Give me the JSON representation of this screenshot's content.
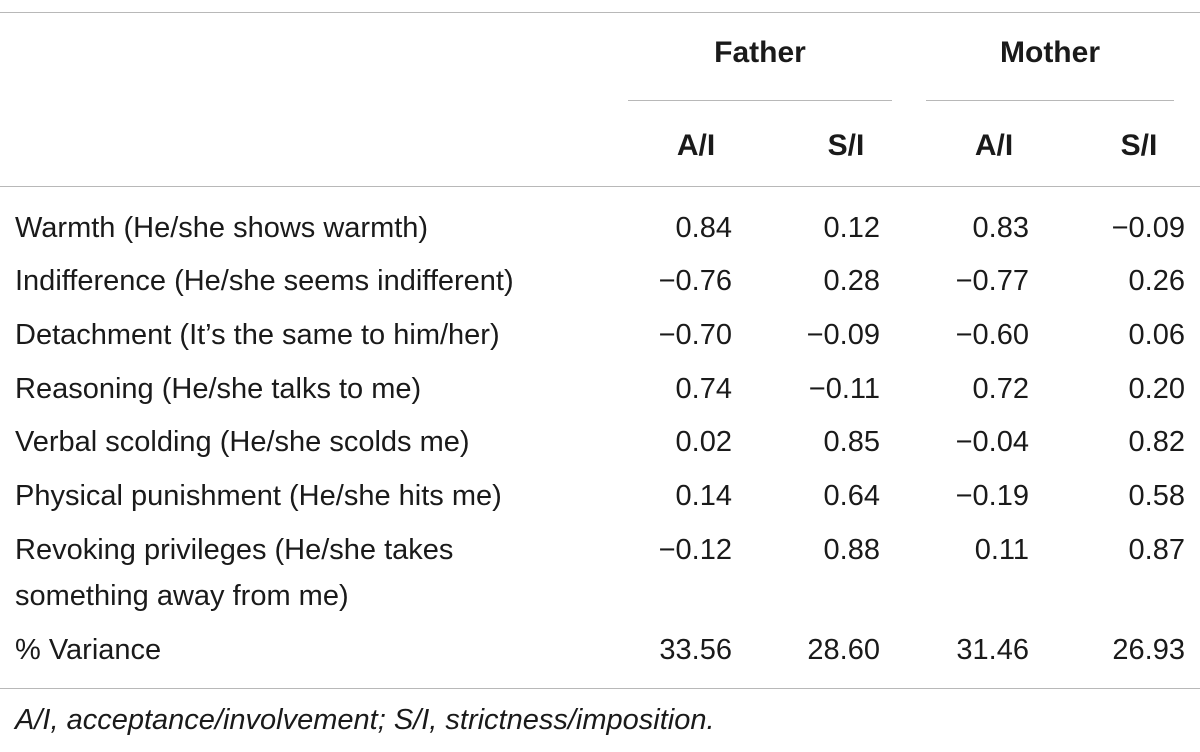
{
  "header": {
    "group1": "Father",
    "group2": "Mother",
    "cols": [
      "A/I",
      "S/I",
      "A/I",
      "S/I"
    ]
  },
  "rows": [
    {
      "label": "Warmth (He/she shows warmth)",
      "values": [
        "0.84",
        "0.12",
        "0.83",
        "−0.09"
      ]
    },
    {
      "label": "Indifference (He/she seems indifferent)",
      "values": [
        "−0.76",
        "0.28",
        "−0.77",
        "0.26"
      ]
    },
    {
      "label": "Detachment (It’s the same to him/her)",
      "values": [
        "−0.70",
        "−0.09",
        "−0.60",
        "0.06"
      ]
    },
    {
      "label": "Reasoning (He/she talks to me)",
      "values": [
        "0.74",
        "−0.11",
        "0.72",
        "0.20"
      ]
    },
    {
      "label": "Verbal scolding (He/she scolds me)",
      "values": [
        "0.02",
        "0.85",
        "−0.04",
        "0.82"
      ]
    },
    {
      "label": "Physical punishment (He/she hits me)",
      "values": [
        "0.14",
        "0.64",
        "−0.19",
        "0.58"
      ]
    },
    {
      "label": "Revoking privileges (He/she takes",
      "label2": "something away from me)",
      "values": [
        "−0.12",
        "0.88",
        "0.11",
        "0.87"
      ]
    },
    {
      "label": "% Variance",
      "values": [
        "33.56",
        "28.60",
        "31.46",
        "26.93"
      ]
    }
  ],
  "footnote": "A/I, acceptance/involvement; S/I, strictness/imposition."
}
